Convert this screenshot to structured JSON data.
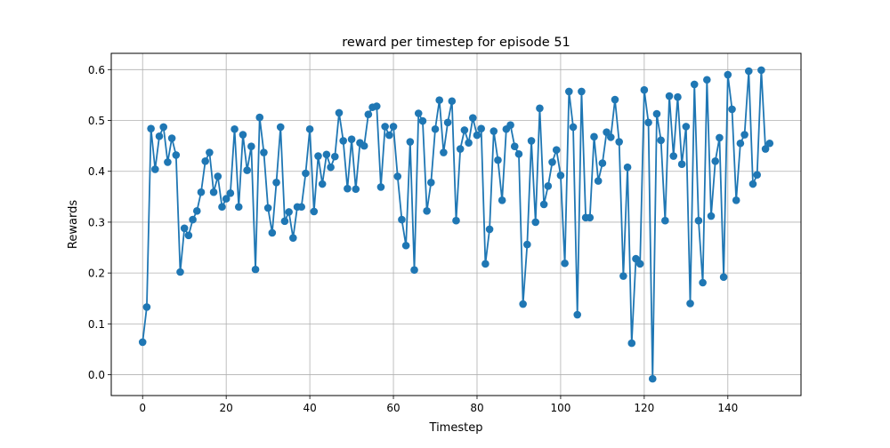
{
  "chart_data": {
    "type": "line",
    "title": "reward per timestep for episode 51",
    "xlabel": "Timestep",
    "ylabel": "Rewards",
    "xlim": [
      -7.5,
      157.5
    ],
    "ylim": [
      -0.041,
      0.632
    ],
    "xticks": [
      0,
      20,
      40,
      60,
      80,
      100,
      120,
      140
    ],
    "yticks": [
      0.0,
      0.1,
      0.2,
      0.3,
      0.4,
      0.5,
      0.6
    ],
    "xtick_labels": [
      "0",
      "20",
      "40",
      "60",
      "80",
      "100",
      "120",
      "140"
    ],
    "ytick_labels": [
      "0.0",
      "0.1",
      "0.2",
      "0.3",
      "0.4",
      "0.5",
      "0.6"
    ],
    "grid": true,
    "marker": "circle",
    "series": [
      {
        "color": "#1f77b4",
        "x": [
          0,
          1,
          2,
          3,
          4,
          5,
          6,
          7,
          8,
          9,
          10,
          11,
          12,
          13,
          14,
          15,
          16,
          17,
          18,
          19,
          20,
          21,
          22,
          23,
          24,
          25,
          26,
          27,
          28,
          29,
          30,
          31,
          32,
          33,
          34,
          35,
          36,
          37,
          38,
          39,
          40,
          41,
          42,
          43,
          44,
          45,
          46,
          47,
          48,
          49,
          50,
          51,
          52,
          53,
          54,
          55,
          56,
          57,
          58,
          59,
          60,
          61,
          62,
          63,
          64,
          65,
          66,
          67,
          68,
          69,
          70,
          71,
          72,
          73,
          74,
          75,
          76,
          77,
          78,
          79,
          80,
          81,
          82,
          83,
          84,
          85,
          86,
          87,
          88,
          89,
          90,
          91,
          92,
          93,
          94,
          95,
          96,
          97,
          98,
          99,
          100,
          101,
          102,
          103,
          104,
          105,
          106,
          107,
          108,
          109,
          110,
          111,
          112,
          113,
          114,
          115,
          116,
          117,
          118,
          119,
          120,
          121,
          122,
          123,
          124,
          125,
          126,
          127,
          128,
          129,
          130,
          131,
          132,
          133,
          134,
          135,
          136,
          137,
          138,
          139,
          140,
          141,
          142,
          143,
          144,
          145,
          146,
          147,
          148,
          149,
          150
        ],
        "y": [
          0.064,
          0.133,
          0.484,
          0.404,
          0.469,
          0.487,
          0.418,
          0.465,
          0.432,
          0.202,
          0.288,
          0.274,
          0.305,
          0.322,
          0.359,
          0.42,
          0.437,
          0.359,
          0.39,
          0.33,
          0.346,
          0.357,
          0.483,
          0.33,
          0.472,
          0.402,
          0.449,
          0.207,
          0.506,
          0.437,
          0.328,
          0.279,
          0.378,
          0.487,
          0.302,
          0.32,
          0.269,
          0.33,
          0.33,
          0.396,
          0.483,
          0.321,
          0.43,
          0.375,
          0.433,
          0.408,
          0.429,
          0.515,
          0.46,
          0.366,
          0.463,
          0.365,
          0.456,
          0.45,
          0.512,
          0.526,
          0.528,
          0.369,
          0.488,
          0.471,
          0.488,
          0.39,
          0.305,
          0.254,
          0.458,
          0.206,
          0.514,
          0.499,
          0.322,
          0.378,
          0.483,
          0.54,
          0.437,
          0.496,
          0.538,
          0.303,
          0.444,
          0.481,
          0.456,
          0.505,
          0.471,
          0.484,
          0.218,
          0.286,
          0.479,
          0.422,
          0.343,
          0.483,
          0.491,
          0.449,
          0.434,
          0.139,
          0.256,
          0.46,
          0.3,
          0.524,
          0.335,
          0.371,
          0.418,
          0.442,
          0.392,
          0.219,
          0.557,
          0.487,
          0.118,
          0.557,
          0.309,
          0.309,
          0.468,
          0.381,
          0.416,
          0.477,
          0.467,
          0.541,
          0.458,
          0.194,
          0.408,
          0.062,
          0.228,
          0.218,
          0.56,
          0.496,
          -0.008,
          0.513,
          0.461,
          0.303,
          0.548,
          0.43,
          0.546,
          0.414,
          0.488,
          0.14,
          0.571,
          0.303,
          0.181,
          0.58,
          0.312,
          0.42,
          0.466,
          0.192,
          0.59,
          0.522,
          0.343,
          0.455,
          0.472,
          0.597,
          0.375,
          0.393,
          0.599,
          0.444,
          0.455
        ]
      }
    ]
  }
}
